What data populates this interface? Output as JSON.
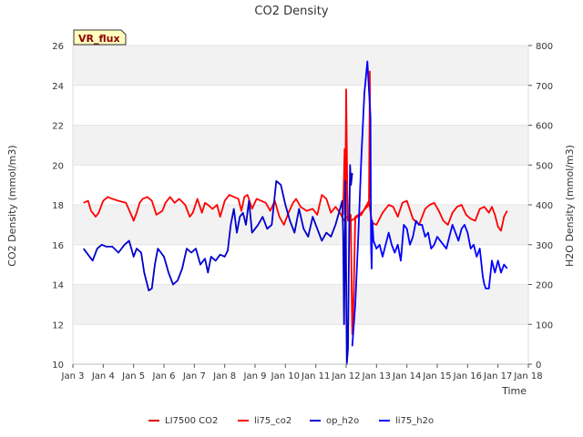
{
  "chart_data": {
    "type": "line",
    "title": "CO2 Density",
    "xlabel": "Time",
    "ylabel": "CO2 Density (mmol/m3)",
    "y2label": "H2O Density (mmol/m3)",
    "site_badge": "VR_flux",
    "xlim": [
      3,
      18
    ],
    "ylim": [
      10,
      26
    ],
    "y2lim": [
      0,
      800
    ],
    "x_ticks": [
      3,
      4,
      5,
      6,
      7,
      8,
      9,
      10,
      11,
      12,
      13,
      14,
      15,
      16,
      17,
      18
    ],
    "x_tick_labels": [
      "Jan 3",
      "Jan 4",
      "Jan 5",
      "Jan 6",
      "Jan 7",
      "Jan 8",
      "Jan 9",
      "Jan 10",
      "Jan 11",
      "Jan 12",
      "Jan 13",
      "Jan 14",
      "Jan 15",
      "Jan 16",
      "Jan 17",
      "Jan 18"
    ],
    "y_ticks": [
      10,
      12,
      14,
      16,
      18,
      20,
      22,
      24,
      26
    ],
    "y_tick_labels": [
      "10",
      "12",
      "14",
      "16",
      "18",
      "20",
      "22",
      "24",
      "26"
    ],
    "y2_ticks": [
      0,
      100,
      200,
      300,
      400,
      500,
      600,
      700,
      800
    ],
    "y2_tick_labels": [
      "0",
      "100",
      "200",
      "300",
      "400",
      "500",
      "600",
      "700",
      "800"
    ],
    "legend": [
      {
        "label": "LI7500 CO2",
        "color": "#dd0000"
      },
      {
        "label": "li75_co2",
        "color": "#ff0000"
      },
      {
        "label": "op_h2o",
        "color": "#0000cc"
      },
      {
        "label": "li75_h2o",
        "color": "#0000ff"
      }
    ],
    "series": [
      {
        "name": "li75_co2",
        "axis": "left",
        "color": "#ff0000",
        "x": [
          3.35,
          3.5,
          3.6,
          3.75,
          3.85,
          4.0,
          4.15,
          4.3,
          4.5,
          4.75,
          4.95,
          5.0,
          5.1,
          5.2,
          5.3,
          5.45,
          5.6,
          5.75,
          5.85,
          5.95,
          6.05,
          6.2,
          6.35,
          6.5,
          6.7,
          6.85,
          6.95,
          7.1,
          7.25,
          7.35,
          7.45,
          7.6,
          7.75,
          7.85,
          8.0,
          8.15,
          8.3,
          8.45,
          8.55,
          8.65,
          8.75,
          8.9,
          9.05,
          9.2,
          9.35,
          9.5,
          9.65,
          9.8,
          9.95,
          10.1,
          10.25,
          10.35,
          10.5,
          10.7,
          10.9,
          11.05,
          11.2,
          11.35,
          11.5,
          11.65,
          11.8,
          11.9,
          11.95,
          12.0,
          12.15,
          12.5,
          12.75,
          12.85,
          13.0,
          13.2,
          13.4,
          13.55,
          13.7,
          13.85,
          14.0,
          14.2,
          14.4,
          14.6,
          14.75,
          14.9,
          15.05,
          15.2,
          15.35,
          15.5,
          15.65,
          15.8,
          15.95,
          16.1,
          16.25,
          16.4,
          16.55,
          16.7,
          16.8,
          16.9,
          17.0,
          17.1,
          17.2,
          17.3
        ],
        "y": [
          18.1,
          18.2,
          17.7,
          17.4,
          17.6,
          18.2,
          18.4,
          18.3,
          18.2,
          18.1,
          17.4,
          17.2,
          17.6,
          18.1,
          18.3,
          18.4,
          18.2,
          17.5,
          17.6,
          17.7,
          18.1,
          18.4,
          18.1,
          18.3,
          18.0,
          17.4,
          17.6,
          18.3,
          17.6,
          18.1,
          18.0,
          17.8,
          18.0,
          17.4,
          18.2,
          18.5,
          18.4,
          18.3,
          17.7,
          18.4,
          18.5,
          17.8,
          18.3,
          18.2,
          18.1,
          17.7,
          18.2,
          17.4,
          17.0,
          17.6,
          18.1,
          18.3,
          17.9,
          17.7,
          17.8,
          17.5,
          18.5,
          18.3,
          17.6,
          17.9,
          17.6,
          17.3,
          17.2,
          17.4,
          17.2,
          17.5,
          18.2,
          17.1,
          17.0,
          17.6,
          18.0,
          17.9,
          17.4,
          18.1,
          18.2,
          17.3,
          17.0,
          17.8,
          18.0,
          18.1,
          17.7,
          17.2,
          17.0,
          17.6,
          17.9,
          18.0,
          17.5,
          17.3,
          17.2,
          17.8,
          17.9,
          17.6,
          17.9,
          17.5,
          16.9,
          16.7,
          17.4,
          17.7
        ]
      },
      {
        "name": "LI7500 CO2",
        "axis": "left",
        "color": "#ff0000",
        "x": [
          11.9,
          11.95,
          11.97,
          12.0,
          12.02,
          12.04,
          12.06,
          12.15,
          12.2,
          12.25,
          12.3,
          12.5,
          12.75,
          12.78,
          12.8
        ],
        "y": [
          17.5,
          20.8,
          17.8,
          23.8,
          21.0,
          18.5,
          17.2,
          17.5,
          11.5,
          13.5,
          17.4,
          17.6,
          18.0,
          24.7,
          18.3
        ]
      },
      {
        "name": "op_h2o",
        "axis": "right",
        "color": "#0000cc",
        "x": [
          3.35,
          3.5,
          3.65,
          3.8,
          3.95,
          4.1,
          4.3,
          4.5,
          4.7,
          4.85,
          5.0,
          5.1,
          5.25,
          5.35,
          5.5,
          5.6,
          5.7,
          5.8,
          5.9,
          6.0,
          6.15,
          6.3,
          6.45,
          6.6,
          6.75,
          6.9,
          7.05,
          7.2,
          7.35,
          7.45,
          7.55,
          7.7,
          7.85,
          8.0,
          8.1,
          8.2,
          8.3,
          8.4,
          8.5,
          8.6,
          8.7,
          8.8,
          8.9,
          9.0,
          9.1,
          9.25,
          9.4,
          9.55,
          9.7,
          9.85,
          10.0,
          10.15,
          10.3,
          10.45,
          10.6,
          10.75,
          10.9,
          11.05,
          11.2,
          11.35,
          11.5,
          11.65,
          11.8,
          11.87,
          11.9,
          11.93,
          11.98,
          12.02,
          12.06,
          12.1,
          12.13,
          12.16,
          12.2
        ],
        "y": [
          290,
          275,
          260,
          290,
          300,
          295,
          295,
          280,
          300,
          310,
          270,
          290,
          280,
          230,
          185,
          190,
          250,
          290,
          280,
          270,
          230,
          200,
          210,
          240,
          290,
          280,
          290,
          250,
          265,
          230,
          270,
          260,
          275,
          270,
          285,
          350,
          390,
          330,
          370,
          380,
          350,
          410,
          330,
          340,
          350,
          370,
          340,
          350,
          460,
          450,
          400,
          360,
          330,
          390,
          340,
          320,
          370,
          340,
          310,
          330,
          320,
          350,
          390,
          410,
          330,
          100,
          460,
          0,
          40,
          330,
          500,
          450,
          480
        ]
      },
      {
        "name": "li75_h2o",
        "axis": "right",
        "color": "#0000ff",
        "x": [
          12.2,
          12.3,
          12.4,
          12.5,
          12.6,
          12.7,
          12.8,
          12.82,
          12.84,
          12.86,
          12.9,
          13.0,
          13.1,
          13.2,
          13.3,
          13.4,
          13.5,
          13.6,
          13.7,
          13.8,
          13.9,
          14.0,
          14.1,
          14.2,
          14.3,
          14.4,
          14.5,
          14.6,
          14.7,
          14.8,
          14.9,
          15.0,
          15.1,
          15.2,
          15.3,
          15.4,
          15.5,
          15.6,
          15.7,
          15.8,
          15.9,
          16.0,
          16.1,
          16.2,
          16.3,
          16.4,
          16.5,
          16.55,
          16.6,
          16.7,
          16.8,
          16.9,
          17.0,
          17.1,
          17.2,
          17.3
        ],
        "y": [
          45,
          150,
          320,
          520,
          680,
          760,
          620,
          300,
          240,
          360,
          310,
          290,
          300,
          270,
          300,
          330,
          300,
          280,
          300,
          260,
          350,
          340,
          300,
          320,
          360,
          350,
          350,
          320,
          330,
          290,
          300,
          320,
          310,
          300,
          290,
          320,
          350,
          330,
          310,
          340,
          350,
          330,
          290,
          300,
          270,
          290,
          220,
          200,
          190,
          190,
          260,
          230,
          260,
          230,
          250,
          240
        ]
      }
    ]
  }
}
